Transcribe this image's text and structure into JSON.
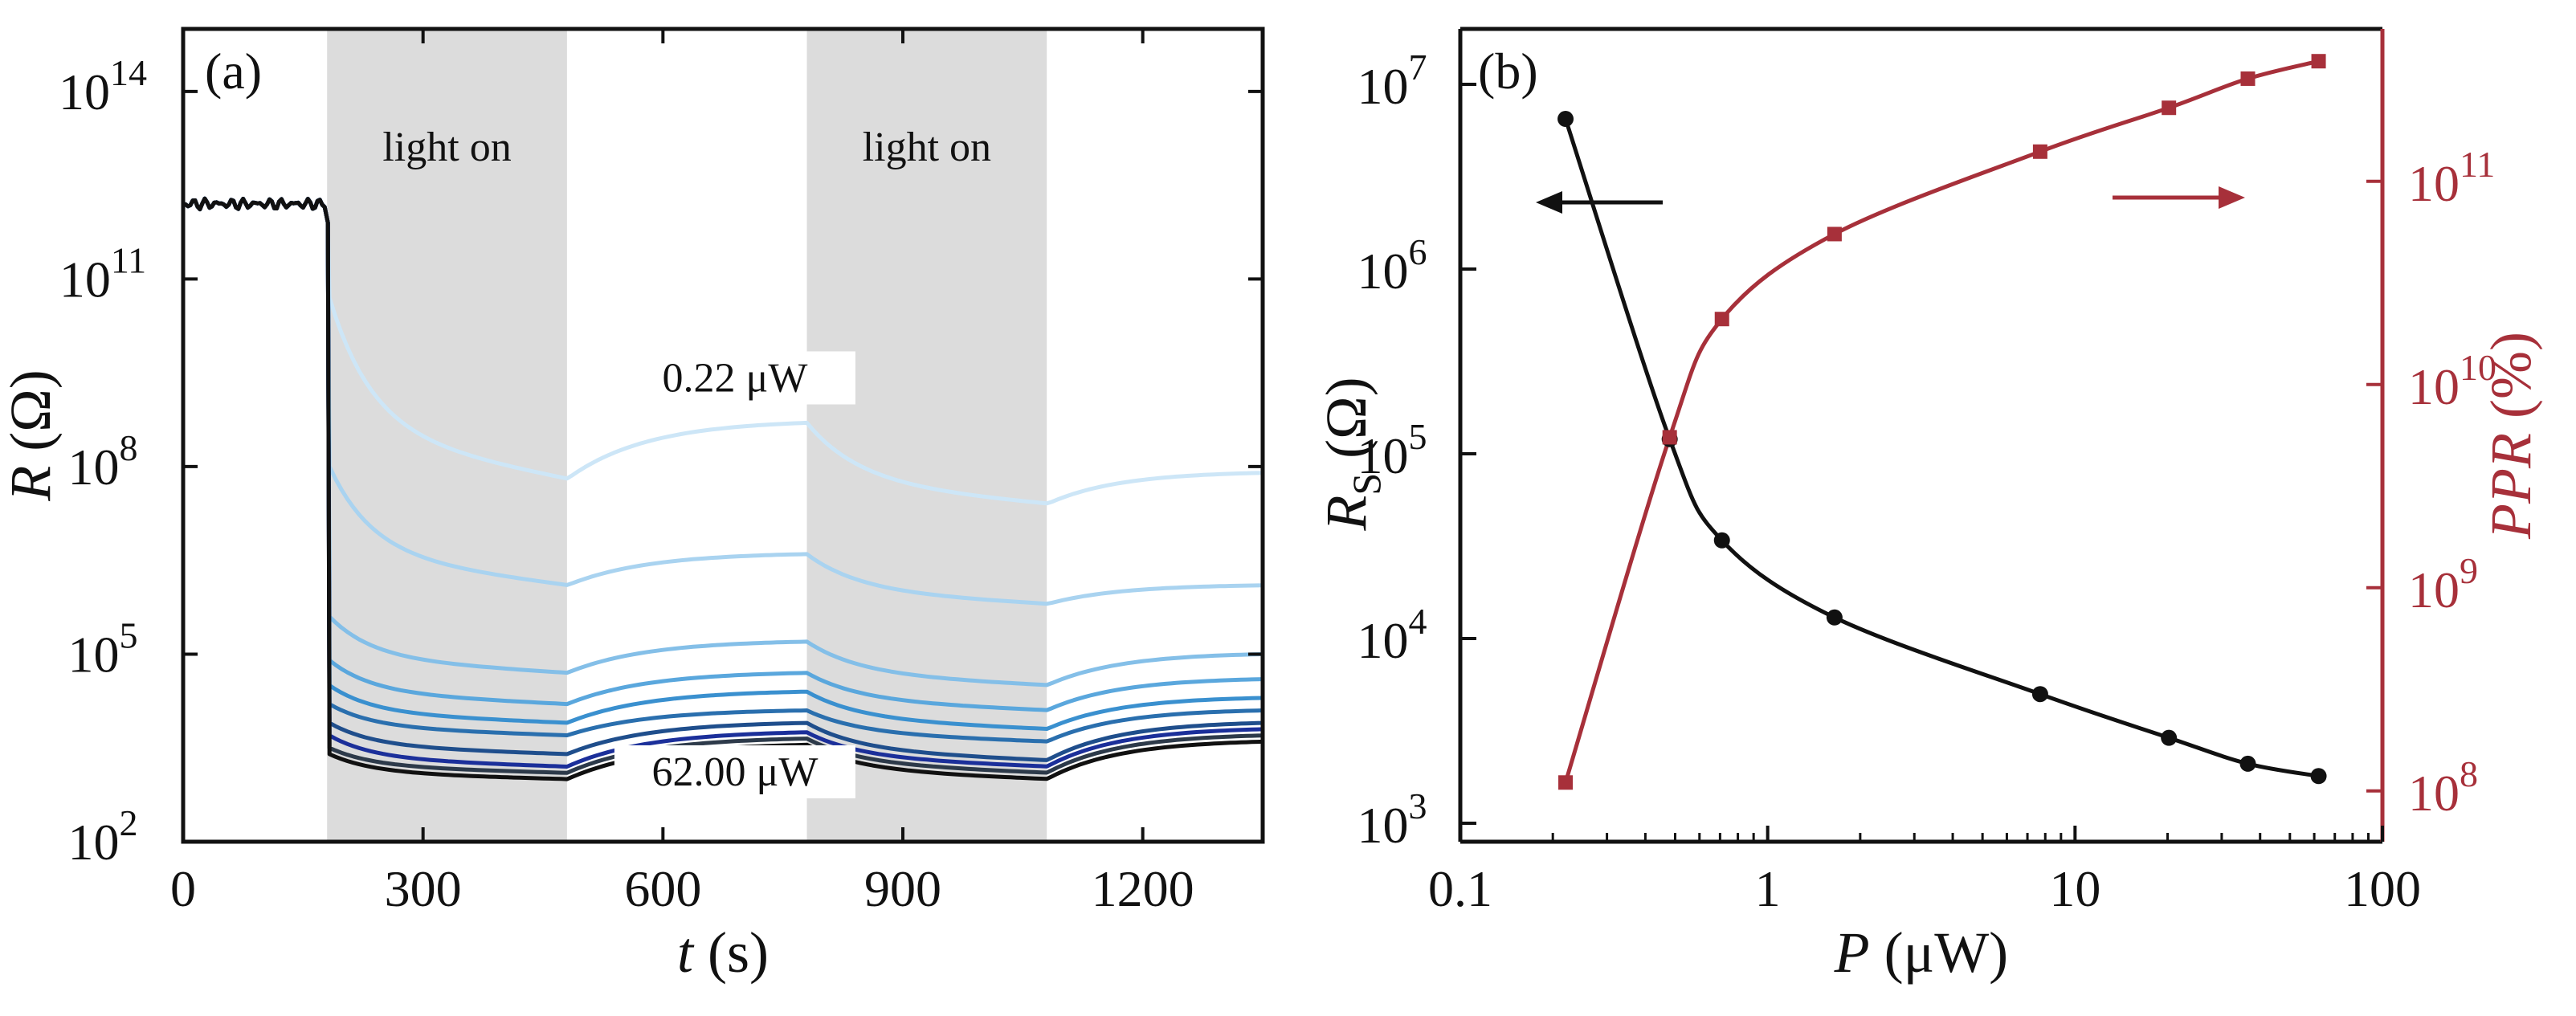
{
  "colors": {
    "axis": "#111111",
    "shade": "#dcdcdc",
    "red": "#a7303a",
    "black": "#111111"
  },
  "chart_data": [
    {
      "panel": "(a)",
      "type": "line",
      "xlabel_var": "t",
      "xlabel_unit": " (s)",
      "ylabel_var": "R",
      "ylabel_unit": " (Ω)",
      "xlim": [
        0,
        1350
      ],
      "ylim_log10": [
        2,
        15
      ],
      "x_ticks": [
        0,
        300,
        600,
        900,
        1200
      ],
      "x_tick_labels": [
        "0",
        "300",
        "600",
        "900",
        "1200"
      ],
      "y_ticks_exp": [
        2,
        5,
        8,
        11,
        14
      ],
      "y_tick_mantissa": "10",
      "shaded_regions": [
        {
          "label": "light on",
          "start": 180,
          "end": 480
        },
        {
          "label": "light on",
          "start": 780,
          "end": 1080
        }
      ],
      "annotations": [
        {
          "text": "0.22 μW",
          "x": 690,
          "log10": 9.2
        },
        {
          "text": "62.00 μW",
          "x": 690,
          "log10": 2.9
        }
      ],
      "dark_resistance_log10": 12.2,
      "series": [
        {
          "name": "0.22 μW",
          "color": "#cde6f7",
          "peak": 10.7,
          "a_end": 7.8,
          "b_end": 8.7,
          "c_end": 7.4,
          "d_end": 7.9
        },
        {
          "name": "s2",
          "color": "#a9d3f0",
          "peak": 8.0,
          "a_end": 6.1,
          "b_end": 6.6,
          "c_end": 5.8,
          "d_end": 6.1
        },
        {
          "name": "s3",
          "color": "#84bfe8",
          "peak": 5.6,
          "a_end": 4.7,
          "b_end": 5.2,
          "c_end": 4.5,
          "d_end": 5.0
        },
        {
          "name": "s4",
          "color": "#5aa7dd",
          "peak": 4.9,
          "a_end": 4.2,
          "b_end": 4.7,
          "c_end": 4.1,
          "d_end": 4.6
        },
        {
          "name": "s5",
          "color": "#3a90cf",
          "peak": 4.5,
          "a_end": 3.9,
          "b_end": 4.4,
          "c_end": 3.8,
          "d_end": 4.3
        },
        {
          "name": "s6",
          "color": "#2a6fae",
          "peak": 4.2,
          "a_end": 3.7,
          "b_end": 4.1,
          "c_end": 3.6,
          "d_end": 4.1
        },
        {
          "name": "s7",
          "color": "#1f4e8c",
          "peak": 3.9,
          "a_end": 3.4,
          "b_end": 3.9,
          "c_end": 3.3,
          "d_end": 3.9
        },
        {
          "name": "s8",
          "color": "#1b2f9a",
          "peak": 3.7,
          "a_end": 3.2,
          "b_end": 3.75,
          "c_end": 3.2,
          "d_end": 3.8
        },
        {
          "name": "s9",
          "color": "#2d3a4a",
          "peak": 3.5,
          "a_end": 3.1,
          "b_end": 3.65,
          "c_end": 3.1,
          "d_end": 3.7
        },
        {
          "name": "62.00 μW",
          "color": "#111111",
          "peak": 3.4,
          "a_end": 3.0,
          "b_end": 3.55,
          "c_end": 3.0,
          "d_end": 3.6
        }
      ]
    },
    {
      "panel": "(b)",
      "type": "scatter",
      "xlabel_var": "P",
      "xlabel_unit": " (μW)",
      "ylabel_left_var": "R",
      "ylabel_left_sub": "S",
      "ylabel_left_unit": " (Ω)",
      "ylabel_right_var": "PPR",
      "ylabel_right_unit": " (%)",
      "xlim_log10": [
        -1,
        2
      ],
      "x_ticks": [
        0.1,
        1,
        10,
        100
      ],
      "x_tick_labels": [
        "0.1",
        "1",
        "10",
        "100"
      ],
      "ylim_left_log10": [
        2.9,
        7.3
      ],
      "y_left_ticks_exp": [
        3,
        4,
        5,
        6,
        7
      ],
      "ylim_right_log10": [
        7.75,
        11.75
      ],
      "y_right_ticks_exp": [
        8,
        9,
        10,
        11
      ],
      "y_tick_mantissa": "10",
      "x": [
        0.22,
        0.48,
        0.71,
        1.65,
        7.7,
        20.2,
        36.5,
        62.0
      ],
      "series": [
        {
          "name": "RS",
          "axis": "left",
          "color": "#111111",
          "marker": "circle",
          "values": [
            6500000,
            120000,
            34000,
            13000,
            5000,
            2900,
            2100,
            1800
          ]
        },
        {
          "name": "PPR",
          "axis": "right",
          "color": "#a7303a",
          "marker": "square",
          "values": [
            110000000,
            5500000000,
            21000000000,
            55000000000,
            140000000000,
            230000000000,
            320000000000,
            390000000000
          ]
        }
      ],
      "arrows": [
        {
          "direction": "left",
          "series": "RS"
        },
        {
          "direction": "right",
          "series": "PPR"
        }
      ]
    }
  ]
}
